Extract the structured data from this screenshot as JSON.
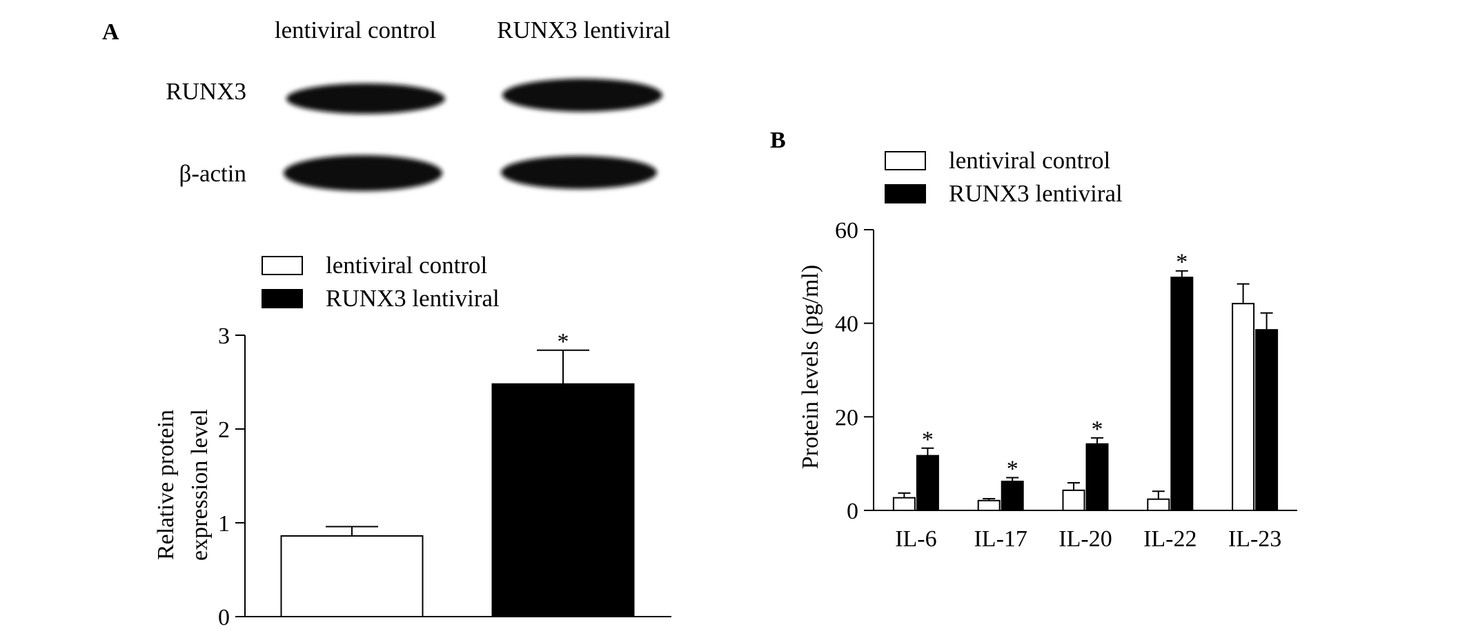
{
  "figure": {
    "panel_a_label": "A",
    "panel_b_label": "B"
  },
  "western_blot": {
    "lane_labels": [
      "lentiviral control",
      "RUNX3 lentiviral"
    ],
    "row_labels": [
      "RUNX3",
      "β-actin"
    ]
  },
  "colors": {
    "control": "#ffffff",
    "runx3": "#000000",
    "band": "#111111"
  },
  "chart_data": [
    {
      "type": "bar",
      "legend": [
        "lentiviral control",
        "RUNX3 lentiviral"
      ],
      "categories": [
        "lentiviral control",
        "RUNX3 lentiviral"
      ],
      "values": [
        0.86,
        2.48
      ],
      "errors": [
        0.1,
        0.36
      ],
      "significance": [
        "",
        "*"
      ],
      "ylabel_line1": "Relative protein",
      "ylabel_line2": "expression level",
      "ylim": [
        0,
        3
      ],
      "yticks": [
        "0",
        "1",
        "2",
        "3"
      ]
    },
    {
      "type": "bar",
      "categories": [
        "IL-6",
        "IL-17",
        "IL-20",
        "IL-22",
        "IL-23"
      ],
      "series": [
        {
          "name": "lentiviral control",
          "values": [
            2.7,
            2.1,
            4.3,
            2.4,
            44.2
          ],
          "errors": [
            1.0,
            0.4,
            1.6,
            1.7,
            4.2
          ],
          "significance": [
            "",
            "",
            "",
            "",
            ""
          ]
        },
        {
          "name": "RUNX3 lentiviral",
          "values": [
            11.7,
            6.2,
            14.2,
            49.8,
            38.6
          ],
          "errors": [
            1.6,
            0.8,
            1.3,
            1.4,
            3.6
          ],
          "significance": [
            "*",
            "*",
            "*",
            "*",
            ""
          ]
        }
      ],
      "ylabel": "Protein levels (pg/ml)",
      "ylim": [
        0,
        60
      ],
      "yticks": [
        "0",
        "20",
        "40",
        "60"
      ]
    }
  ]
}
